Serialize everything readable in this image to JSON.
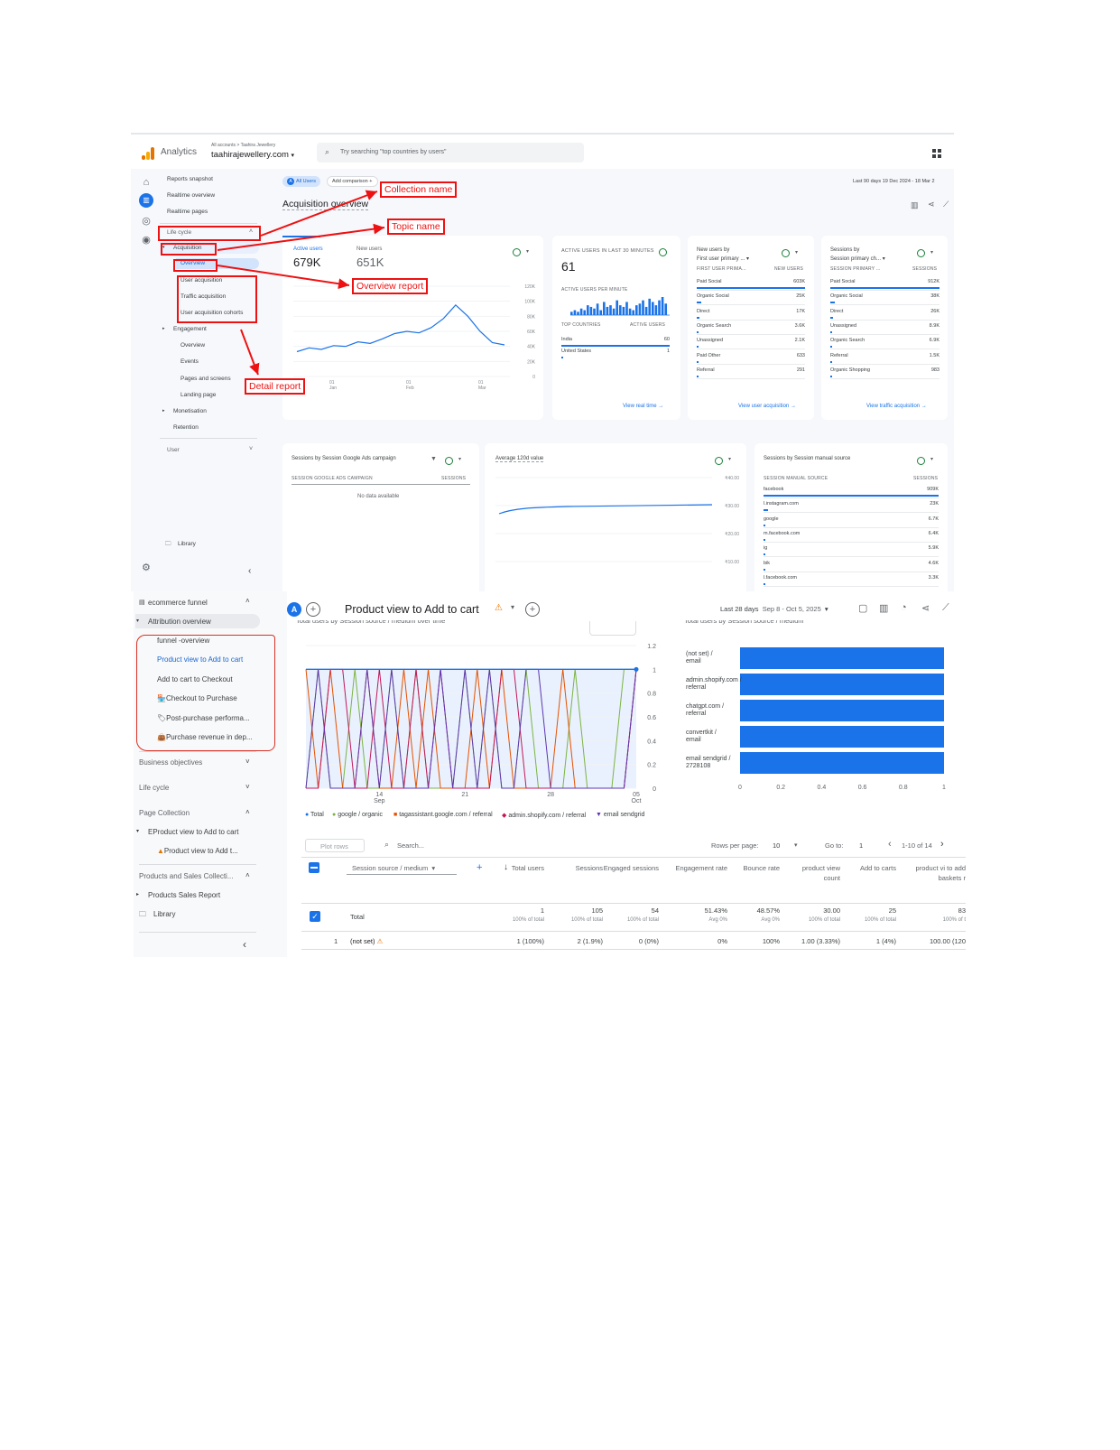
{
  "shot1": {
    "brand": "Analytics",
    "account_path": "All accounts > Taahira Jewellery",
    "property": "taahirajewellery.com",
    "search_placeholder": "Try searching \"top countries by users\"",
    "nav": {
      "reports_snapshot": "Reports snapshot",
      "realtime_overview": "Realtime overview",
      "realtime_pages": "Realtime pages",
      "life_cycle": "Life cycle",
      "acquisition": "Acquisition",
      "overview": "Overview",
      "user_acquisition": "User acquisition",
      "traffic_acquisition": "Traffic acquisition",
      "user_acquisition_cohorts": "User acquisition cohorts",
      "engagement": "Engagement",
      "eng_overview": "Overview",
      "events": "Events",
      "pages_and_screens": "Pages and screens",
      "landing_page": "Landing page",
      "monetisation": "Monetisation",
      "retention": "Retention",
      "user": "User",
      "library": "Library"
    },
    "chips": {
      "all_users": "All Users",
      "add_comparison": "Add comparison"
    },
    "date_range": "Last 90 days  19 Dec 2024 - 18 Mar 2",
    "page_title": "Acquisition overview",
    "annotations": {
      "collection_name": "Collection name",
      "topic_name": "Topic name",
      "overview_report": "Overview report",
      "detail_report": "Detail report"
    },
    "users_card": {
      "active_label": "Active users",
      "active_value": "679K",
      "new_label": "New users",
      "new_value": "651K",
      "y_ticks": [
        "120K",
        "100K",
        "80K",
        "60K",
        "40K",
        "20K",
        "0"
      ],
      "x_ticks": [
        {
          "day": "01",
          "month": "Jan"
        },
        {
          "day": "01",
          "month": "Feb"
        },
        {
          "day": "01",
          "month": "Mar"
        }
      ],
      "line_values": [
        33,
        38,
        36,
        41,
        40,
        46,
        44,
        50,
        57,
        60,
        58,
        65,
        77,
        95,
        80,
        60,
        45,
        42
      ]
    },
    "realtime_card": {
      "title": "ACTIVE USERS IN LAST 30 MINUTES",
      "value": "61",
      "per_minute": "ACTIVE USERS PER MINUTE",
      "bars": [
        2,
        3,
        2,
        4,
        3,
        6,
        5,
        4,
        7,
        3,
        8,
        5,
        6,
        4,
        9,
        6,
        5,
        8,
        4,
        3,
        6,
        7,
        9,
        5,
        10,
        8,
        6,
        9,
        11,
        7
      ],
      "col1": "TOP COUNTRIES",
      "col2": "ACTIVE USERS",
      "rows": [
        {
          "label": "India",
          "value": "60"
        },
        {
          "label": "United States",
          "value": "1"
        }
      ],
      "link": "View real time"
    },
    "new_users_card": {
      "title_line1": "New users by",
      "title_line2": "First user primary ...",
      "col1": "FIRST USER PRIMA...",
      "col2": "NEW USERS",
      "rows": [
        {
          "label": "Paid Social",
          "value": "603K"
        },
        {
          "label": "Organic Social",
          "value": "25K"
        },
        {
          "label": "Direct",
          "value": "17K"
        },
        {
          "label": "Organic Search",
          "value": "3.6K"
        },
        {
          "label": "Unassigned",
          "value": "2.1K"
        },
        {
          "label": "Paid Other",
          "value": "633"
        },
        {
          "label": "Referral",
          "value": "291"
        }
      ],
      "link": "View user acquisition"
    },
    "sessions_card": {
      "title_line1": "Sessions by",
      "title_line2": "Session primary ch...",
      "col1": "SESSION PRIMARY ...",
      "col2": "SESSIONS",
      "rows": [
        {
          "label": "Paid Social",
          "value": "912K"
        },
        {
          "label": "Organic Social",
          "value": "38K"
        },
        {
          "label": "Direct",
          "value": "26K"
        },
        {
          "label": "Unassigned",
          "value": "8.9K"
        },
        {
          "label": "Organic Search",
          "value": "6.9K"
        },
        {
          "label": "Referral",
          "value": "1.5K"
        },
        {
          "label": "Organic Shopping",
          "value": "983"
        }
      ],
      "link": "View traffic acquisition"
    },
    "ads_card": {
      "title": "Sessions by Session Google Ads campaign",
      "col1": "SESSION GOOGLE ADS CAMPAIGN",
      "col2": "SESSIONS",
      "empty": "No data available"
    },
    "ltv_card": {
      "title": "Average 120d value",
      "y_ticks": [
        "₹40.00",
        "₹30.00",
        "₹20.00",
        "₹10.00"
      ]
    },
    "manual_card": {
      "title": "Sessions by Session manual source",
      "col1": "SESSION MANUAL SOURCE",
      "col2": "SESSIONS",
      "rows": [
        {
          "label": "facebook",
          "value": "909K"
        },
        {
          "label": "l.instagram.com",
          "value": "23K"
        },
        {
          "label": "google",
          "value": "6.7K"
        },
        {
          "label": "m.facebook.com",
          "value": "6.4K"
        },
        {
          "label": "ig",
          "value": "5.9K"
        },
        {
          "label": "bik",
          "value": "4.6K"
        },
        {
          "label": "l.facebook.com",
          "value": "3.3K"
        }
      ]
    }
  },
  "shot2": {
    "nav": {
      "ecommerce_funnel": "ecommerce funnel",
      "attribution_overview": "Attribution overview",
      "funnel_items": [
        "funnel -overview",
        "Product view to Add to cart",
        "Add to cart to Checkout",
        "Checkout to Purchase",
        "Post-purchase performa...",
        "Purchase revenue in dep..."
      ],
      "business_objectives": "Business objectives",
      "life_cycle": "Life cycle",
      "page_collection": "Page Collection",
      "page_item": "EProduct view to Add to cart",
      "page_subitem": "Product view to Add t...",
      "products_collection": "Products and Sales Collecti...",
      "products_report": "Products Sales Report",
      "library": "Library"
    },
    "avatar_letter": "A",
    "title": "Product view to Add to cart",
    "date_label": "Last 28 days",
    "date_range": "Sep 8 - Oct 5, 2025",
    "left_chart_title": "Total users by Session source / medium over time",
    "right_chart_title": "Total users by Session source / medium",
    "chart_data": [
      {
        "type": "line",
        "title": "Total users by Session source / medium over time",
        "x_ticks": [
          "14 Sep",
          "21",
          "28",
          "05 Oct"
        ],
        "y_ticks": [
          "1.2",
          "1",
          "0.8",
          "0.6",
          "0.4",
          "0.2",
          "0"
        ],
        "ylim": [
          0,
          1.2
        ],
        "series_names": [
          "Total",
          "google / organic",
          "tagassistant.google.com / referral",
          "admin.shopify.com / referral",
          "email sendgrid"
        ],
        "series_colors": [
          "#1a73e8",
          "#7cb342",
          "#e65100",
          "#c2185b",
          "#5e35b1"
        ],
        "total": [
          1,
          1,
          1,
          1,
          1,
          1,
          1,
          1,
          1,
          1,
          1,
          1,
          1,
          1,
          1,
          1,
          1,
          1,
          1,
          1,
          1,
          1,
          1,
          1,
          1,
          1,
          1,
          1
        ],
        "points": 28
      },
      {
        "type": "bar",
        "title": "Total users by Session source / medium",
        "categories": [
          "(not set) / email",
          "admin.shopify.com / referral",
          "chatgpt.com / referral",
          "convertkit / email",
          "email sendgrid / 2728108"
        ],
        "values": [
          1,
          1,
          1,
          1,
          1
        ],
        "x_ticks": [
          "0",
          "0.2",
          "0.4",
          "0.6",
          "0.8",
          "1"
        ],
        "xlim": [
          0,
          1
        ]
      }
    ],
    "legend": [
      "Total",
      "google / organic",
      "tagassistant.google.com / referral",
      "admin.shopify.com / referral",
      "email sendgrid"
    ],
    "table": {
      "plot_rows": "Plot rows",
      "search": "Search...",
      "rows_per_page_label": "Rows per page:",
      "rows_per_page": "10",
      "goto_label": "Go to:",
      "goto": "1",
      "pagination": "1-10 of 14",
      "dimension": "Session source / medium",
      "headers": [
        "Total users",
        "Sessions",
        "Engaged sessions",
        "Engagement rate",
        "Bounce rate",
        "product view count",
        "Add to carts",
        "product vi to add baskets r"
      ],
      "total_label": "Total",
      "total_values": [
        "1",
        "105",
        "54",
        "51.43%",
        "48.57%",
        "30.00",
        "25",
        "83"
      ],
      "total_subs": [
        "100% of total",
        "100% of total",
        "100% of total",
        "Avg 0%",
        "Avg 0%",
        "100% of total",
        "100% of total",
        "100% of t"
      ],
      "row1_index": "1",
      "row1_label": "(not set)",
      "row1_values": [
        "1 (100%)",
        "2 (1.9%)",
        "0 (0%)",
        "0%",
        "100%",
        "1.00 (3.33%)",
        "1 (4%)",
        "100.00 (120"
      ]
    }
  }
}
